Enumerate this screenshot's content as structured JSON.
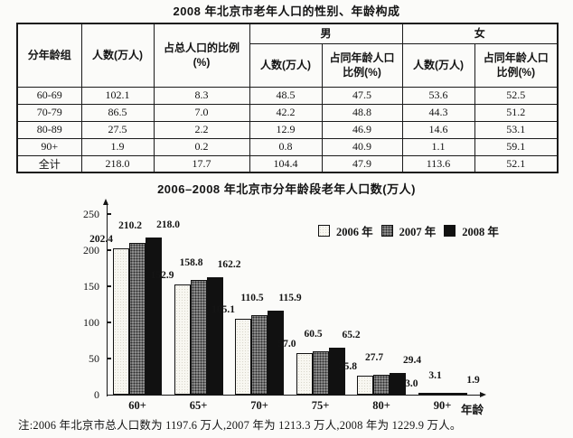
{
  "table": {
    "title": "2008 年北京市老年人口的性别、年龄构成",
    "header": {
      "age_group": "分年龄组",
      "count": "人数(万人)",
      "pct_total": "占总人口的比例\n(%)",
      "male": "男",
      "female": "女",
      "sub_count": "人数(万人)",
      "sub_pct": "占同年龄人口\n比例(%)"
    },
    "rows": [
      [
        "60-69",
        "102.1",
        "8.3",
        "48.5",
        "47.5",
        "53.6",
        "52.5"
      ],
      [
        "70-79",
        "86.5",
        "7.0",
        "42.2",
        "48.8",
        "44.3",
        "51.2"
      ],
      [
        "80-89",
        "27.5",
        "2.2",
        "12.9",
        "46.9",
        "14.6",
        "53.1"
      ],
      [
        "90+",
        "1.9",
        "0.2",
        "0.8",
        "40.9",
        "1.1",
        "59.1"
      ],
      [
        "全计",
        "218.0",
        "17.7",
        "104.4",
        "47.9",
        "113.6",
        "52.1"
      ]
    ]
  },
  "chart_data": {
    "type": "bar",
    "title": "2006–2008 年北京市分年龄段老年人口数(万人)",
    "categories": [
      "60+",
      "65+",
      "70+",
      "75+",
      "80+",
      "90+"
    ],
    "series": [
      {
        "name": "2006 年",
        "values": [
          202.4,
          152.9,
          105.1,
          57.0,
          25.8,
          3.0
        ],
        "color": "#f8f7f1"
      },
      {
        "name": "2007 年",
        "values": [
          210.2,
          158.8,
          110.5,
          60.5,
          27.7,
          3.1
        ],
        "color": "#8b8b8b"
      },
      {
        "name": "2008 年",
        "values": [
          218.0,
          162.2,
          115.9,
          65.2,
          29.4,
          1.9
        ],
        "color": "#111111"
      }
    ],
    "xlabel": "年龄",
    "ylabel": "",
    "ylim": [
      0,
      250
    ],
    "yticks": [
      0,
      50,
      100,
      150,
      200,
      250
    ],
    "legend_position": "top-right",
    "grid": false,
    "value_label_decimals": 1
  },
  "note": {
    "text": "注:2006 年北京市总人口数为 1197.6 万人,2007 年为 1213.3 万人,2008 年为 1229.9 万人。"
  }
}
